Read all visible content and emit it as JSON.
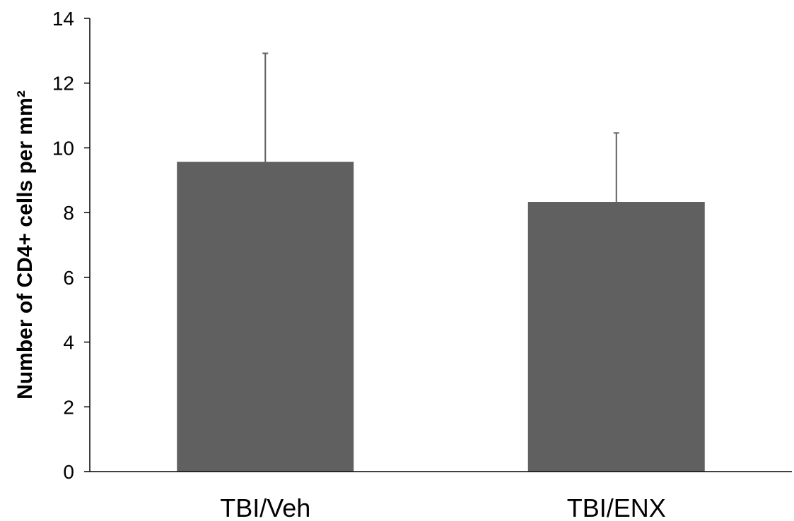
{
  "chart_data": {
    "type": "bar",
    "title": "",
    "xlabel": "",
    "ylabel": "Number of CD4+ cells per mm²",
    "categories": [
      "TBI/Veh",
      "TBI/ENX"
    ],
    "series": [
      {
        "values": [
          9.57,
          8.33
        ],
        "errors": [
          3.35,
          2.13
        ]
      }
    ],
    "ylim": [
      0,
      14
    ],
    "yticks": [
      0,
      2,
      4,
      6,
      8,
      10,
      12,
      14
    ],
    "grid": false,
    "legend": "none",
    "colors": {
      "bar": "#606060",
      "error_bar": "#606060",
      "axis": "#000000"
    }
  }
}
